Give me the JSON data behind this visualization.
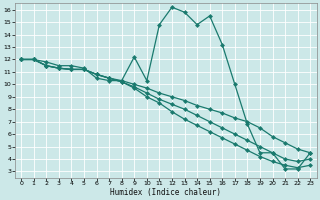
{
  "xlabel": "Humidex (Indice chaleur)",
  "bg_color": "#cce8e8",
  "grid_color": "#ffffff",
  "line_color": "#1a7a6e",
  "xlim_min": -0.5,
  "xlim_max": 23.5,
  "ylim_min": 2.5,
  "ylim_max": 16.5,
  "xticks": [
    0,
    1,
    2,
    3,
    4,
    5,
    6,
    7,
    8,
    9,
    10,
    11,
    12,
    13,
    14,
    15,
    16,
    17,
    18,
    19,
    20,
    21,
    22,
    23
  ],
  "yticks": [
    3,
    4,
    5,
    6,
    7,
    8,
    9,
    10,
    11,
    12,
    13,
    14,
    15,
    16
  ],
  "line1_x": [
    0,
    1,
    2,
    3,
    4,
    5,
    6,
    7,
    8,
    9,
    10,
    11,
    12,
    13,
    14,
    15,
    16,
    17,
    18,
    19,
    20,
    21,
    22,
    23
  ],
  "line1_y": [
    12,
    12,
    11.8,
    11.5,
    11.5,
    11.3,
    10.5,
    10.3,
    10.3,
    12.2,
    10.3,
    14.8,
    16.2,
    15.8,
    14.8,
    15.5,
    13.2,
    10.0,
    6.8,
    4.5,
    4.5,
    3.2,
    3.2,
    4.5
  ],
  "line2_x": [
    0,
    1,
    2,
    3,
    4,
    5,
    6,
    7,
    8,
    9,
    10,
    11,
    12,
    13,
    14,
    15,
    16,
    17,
    18,
    19,
    20,
    21,
    22,
    23
  ],
  "line2_y": [
    12,
    12,
    11.5,
    11.3,
    11.2,
    11.2,
    10.8,
    10.5,
    10.3,
    10.0,
    9.7,
    9.3,
    9.0,
    8.7,
    8.3,
    8.0,
    7.7,
    7.3,
    7.0,
    6.5,
    5.8,
    5.3,
    4.8,
    4.5
  ],
  "line3_x": [
    0,
    1,
    2,
    3,
    4,
    5,
    6,
    7,
    8,
    9,
    10,
    11,
    12,
    13,
    14,
    15,
    16,
    17,
    18,
    19,
    20,
    21,
    22,
    23
  ],
  "line3_y": [
    12,
    12,
    11.5,
    11.3,
    11.2,
    11.2,
    10.8,
    10.5,
    10.2,
    9.8,
    9.3,
    8.8,
    8.4,
    8.0,
    7.5,
    7.0,
    6.5,
    6.0,
    5.5,
    5.0,
    4.5,
    4.0,
    3.8,
    4.0
  ],
  "line4_x": [
    0,
    1,
    2,
    3,
    4,
    5,
    6,
    7,
    8,
    9,
    10,
    11,
    12,
    13,
    14,
    15,
    16,
    17,
    18,
    19,
    20,
    21,
    22,
    23
  ],
  "line4_y": [
    12,
    12,
    11.5,
    11.3,
    11.2,
    11.2,
    10.8,
    10.5,
    10.2,
    9.7,
    9.0,
    8.5,
    7.8,
    7.2,
    6.7,
    6.2,
    5.7,
    5.2,
    4.7,
    4.2,
    3.8,
    3.5,
    3.3,
    3.5
  ]
}
